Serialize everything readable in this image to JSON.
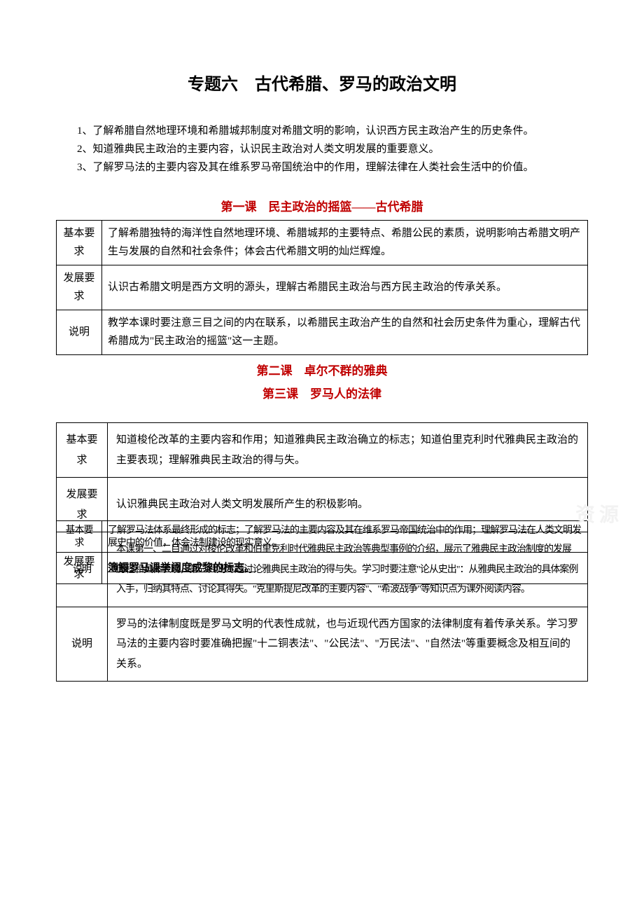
{
  "title": "专题六　古代希腊、罗马的政治文明",
  "intro": [
    "1、了解希腊自然地理环境和希腊城邦制度对希腊文明的影响，认识西方民主政治产生的历史条件。",
    "2、知道雅典民主政治的主要内容，认识民主政治对人类文明发展的重要意义。",
    "3、了解罗马法的主要内容及其在维系罗马帝国统治中的作用，理解法律在人类社会生活中的价值。"
  ],
  "lesson1": {
    "title": "第一课　民主政治的摇篮——古代希腊",
    "rows": [
      {
        "label": "基本要求",
        "text": "了解希腊独特的海洋性自然地理环境、希腊城邦的主要特点、希腊公民的素质，说明影响古希腊文明产生与发展的自然和社会条件；体会古代希腊文明的灿烂辉煌。"
      },
      {
        "label": "发展要求",
        "text": "认识古希腊文明是西方文明的源头，理解古希腊民主政治与西方民主政治的传承关系。"
      },
      {
        "label": "说明",
        "text": "教学本课时要注意三目之间的内在联系，以希腊民主政治产生的自然和社会历史条件为重心，理解古代希腊成为\"民主政治的摇篮\"这一主题。"
      }
    ]
  },
  "lesson2_title": "第二课　卓尔不群的雅典",
  "lesson3_title": "第三课　罗马人的法律",
  "table2": {
    "rows": [
      {
        "label": "基本要求",
        "text": "知道梭伦改革的主要内容和作用；知道雅典民主政治确立的标志；知道伯里克利时代雅典民主政治的主要表现；理解雅典民主政治的得与失。"
      },
      {
        "label": "发展要求",
        "text": "认识雅典民主政治对人类文明发展所产生的积极影响。"
      },
      {
        "label": "说明",
        "text": "本课第一、二目通过对梭伦改革和伯里克利时代雅典民主政治等典型事例的介绍，展示了雅典民主政治制度的发展历程和具体表现，第三目则专题讨论雅典民主政治的得与失。学习时要注意\"论从史出\"：从雅典民主政治的具体案例入手，归纳其特点、讨论其得失。\"克里斯提尼改革的主要内容\"、\"希波战争\"等知识点为课外阅读内容。"
      },
      {
        "label": "说明",
        "text": "罗马的法律制度既是罗马文明的代表性成就，也与近现代西方国家的法律制度有着传承关系。学习罗马法的主要内容时要准确把握\"十二铜表法\"、\"公民法\"、\"万民法\"、\"自然法\"等重要概念及相互间的关系。"
      }
    ]
  },
  "overlay": {
    "rows": [
      {
        "label": "基本要求",
        "text": "了解罗马法体系最终形成的标志；了解罗马法的主要内容及其在维系罗马帝国统治中的作用；理解罗马法在人类文明发展史中的价值，体会法制建设的现实意义。"
      },
      {
        "label": "发展要求",
        "text_bold": "簿觸罗马课举阈度成黎的标志。"
      }
    ]
  },
  "colors": {
    "background": "#ffffff",
    "text": "#000000",
    "heading_red": "#c00000",
    "border": "#000000",
    "watermark": "#f2f2f2"
  },
  "typography": {
    "title_fontsize": 24,
    "subtitle_fontsize": 17,
    "body_fontsize": 15,
    "font_family": "SimSun"
  },
  "watermark": "资源"
}
